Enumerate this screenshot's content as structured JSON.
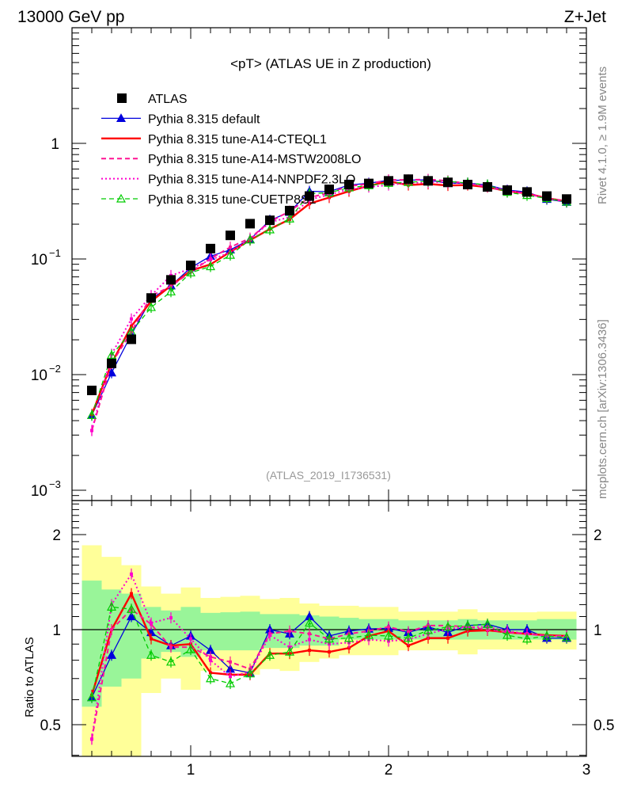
{
  "header": {
    "left": "13000 GeV pp",
    "right": "Z+Jet"
  },
  "side_labels": {
    "rivet": "Rivet 4.1.0, ≥ 1.9M events",
    "mcplots": "mcplots.cern.ch [arXiv:1306.3436]"
  },
  "chart_data": {
    "type": "line",
    "title": "<pT> (ATLAS UE in Z production)",
    "analysis_label": "(ATLAS_2019_I1736531)",
    "xlabel": "",
    "ylabel_ratio": "Ratio to ATLAS",
    "xlim": [
      0.4,
      3.0
    ],
    "ylim": [
      0.00081,
      10
    ],
    "ratio_ylim": [
      0.4,
      2.56
    ],
    "yscale": "log",
    "x_ticks": [
      "1",
      "2",
      "3"
    ],
    "x_tick_values": [
      1,
      2,
      3
    ],
    "y_ticks": [
      {
        "v": 1,
        "base": "1",
        "exp": ""
      },
      {
        "v": 0.1,
        "base": "10",
        "exp": "−1"
      },
      {
        "v": 0.01,
        "base": "10",
        "exp": "−2"
      },
      {
        "v": 0.001,
        "base": "10",
        "exp": "−3"
      }
    ],
    "ratio_ticks": [
      {
        "v": 0.5,
        "label": "0.5"
      },
      {
        "v": 1,
        "label": "1"
      },
      {
        "v": 2,
        "label": "2"
      }
    ],
    "legend_placement": "top-left",
    "x": [
      0.5,
      0.6,
      0.7,
      0.8,
      0.9,
      1.0,
      1.1,
      1.2,
      1.3,
      1.4,
      1.5,
      1.6,
      1.7,
      1.8,
      1.9,
      2.0,
      2.1,
      2.2,
      2.3,
      2.4,
      2.5,
      2.6,
      2.7,
      2.8,
      2.9
    ],
    "data": {
      "name": "ATLAS",
      "color": "#000000",
      "values": [
        0.0073,
        0.0125,
        0.0202,
        0.046,
        0.066,
        0.088,
        0.123,
        0.16,
        0.202,
        0.216,
        0.262,
        0.35,
        0.4,
        0.44,
        0.45,
        0.474,
        0.49,
        0.474,
        0.46,
        0.44,
        0.42,
        0.394,
        0.38,
        0.35,
        0.33
      ]
    },
    "band_inner": {
      "color": "#99f599",
      "hi": [
        1.43,
        1.34,
        1.3,
        1.18,
        1.15,
        1.18,
        1.13,
        1.135,
        1.14,
        1.12,
        1.12,
        1.11,
        1.1,
        1.09,
        1.08,
        1.08,
        1.07,
        1.07,
        1.07,
        1.08,
        1.07,
        1.07,
        1.07,
        1.08,
        1.08
      ],
      "lo": [
        0.57,
        0.66,
        0.7,
        0.81,
        0.85,
        0.82,
        0.86,
        0.86,
        0.86,
        0.875,
        0.875,
        0.89,
        0.89,
        0.93,
        0.93,
        0.93,
        0.93,
        0.93,
        0.93,
        0.93,
        0.93,
        0.93,
        0.93,
        0.93,
        0.93
      ]
    },
    "band_outer": {
      "color": "#ffff99",
      "hi": [
        1.85,
        1.7,
        1.6,
        1.37,
        1.3,
        1.36,
        1.26,
        1.27,
        1.28,
        1.25,
        1.26,
        1.21,
        1.19,
        1.19,
        1.18,
        1.18,
        1.14,
        1.14,
        1.14,
        1.16,
        1.135,
        1.135,
        1.135,
        1.14,
        1.14
      ],
      "lo": [
        0.3,
        0.3,
        0.3,
        0.63,
        0.7,
        0.645,
        0.74,
        0.74,
        0.72,
        0.75,
        0.74,
        0.79,
        0.81,
        0.83,
        0.83,
        0.83,
        0.86,
        0.86,
        0.86,
        0.835,
        0.865,
        0.865,
        0.865,
        0.865,
        0.865
      ]
    },
    "series": [
      {
        "name": "Pythia 8.315 default",
        "color": "#0000dd",
        "style": "solid",
        "width": 1.3,
        "marker": "triangle-filled",
        "ratio": [
          0.61,
          0.83,
          1.1,
          0.98,
          0.89,
          0.955,
          0.86,
          0.75,
          0.73,
          1.0,
          0.97,
          1.1,
          0.955,
          0.99,
          1.005,
          1.01,
          0.98,
          1.02,
          0.98,
          1.03,
          1.04,
          1.0,
          1.0,
          0.94,
          0.94
        ]
      },
      {
        "name": "Pythia 8.315 tune-A14-CTEQL1",
        "color": "#ff0000",
        "style": "solid",
        "width": 2.4,
        "marker": "none",
        "ratio": [
          0.62,
          1.0,
          1.3,
          0.935,
          0.89,
          0.9,
          0.73,
          0.72,
          0.72,
          0.84,
          0.84,
          0.86,
          0.85,
          0.875,
          0.955,
          0.99,
          0.89,
          0.94,
          0.94,
          0.99,
          0.995,
          0.98,
          0.97,
          0.96,
          0.955
        ]
      },
      {
        "name": "Pythia 8.315 tune-A14-MSTW2008LO",
        "color": "#ff1493",
        "style": "dashed",
        "width": 2,
        "marker": "none",
        "ratio": [
          0.45,
          1.0,
          1.16,
          1.04,
          0.88,
          0.88,
          0.82,
          0.79,
          0.75,
          0.97,
          0.99,
          0.97,
          0.935,
          0.97,
          0.99,
          1.02,
          0.985,
          1.03,
          1.03,
          1.02,
          1.0,
          0.98,
          0.97,
          0.955,
          0.955
        ]
      },
      {
        "name": "Pythia 8.315 tune-A14-NNPDF2.3LO",
        "color": "#ff00cc",
        "style": "dotted",
        "width": 2,
        "marker": "none",
        "ratio": [
          0.45,
          1.2,
          1.5,
          1.05,
          1.09,
          0.935,
          0.8,
          0.71,
          0.735,
          0.96,
          0.88,
          0.93,
          0.9,
          0.91,
          0.93,
          0.92,
          0.93,
          0.97,
          1.005,
          1.02,
          1.02,
          0.99,
          0.97,
          0.955,
          0.955
        ]
      },
      {
        "name": "Pythia 8.315 tune-CUETP8S1",
        "color": "#00cc00",
        "style": "dashed",
        "width": 1.3,
        "marker": "triangle-open",
        "ratio": [
          0.61,
          1.18,
          1.16,
          0.83,
          0.79,
          0.865,
          0.7,
          0.675,
          0.725,
          0.83,
          0.85,
          1.05,
          0.935,
          0.94,
          0.96,
          0.955,
          0.94,
          0.995,
          1.02,
          1.03,
          1.04,
          0.96,
          0.935,
          0.955,
          0.945
        ]
      }
    ]
  }
}
